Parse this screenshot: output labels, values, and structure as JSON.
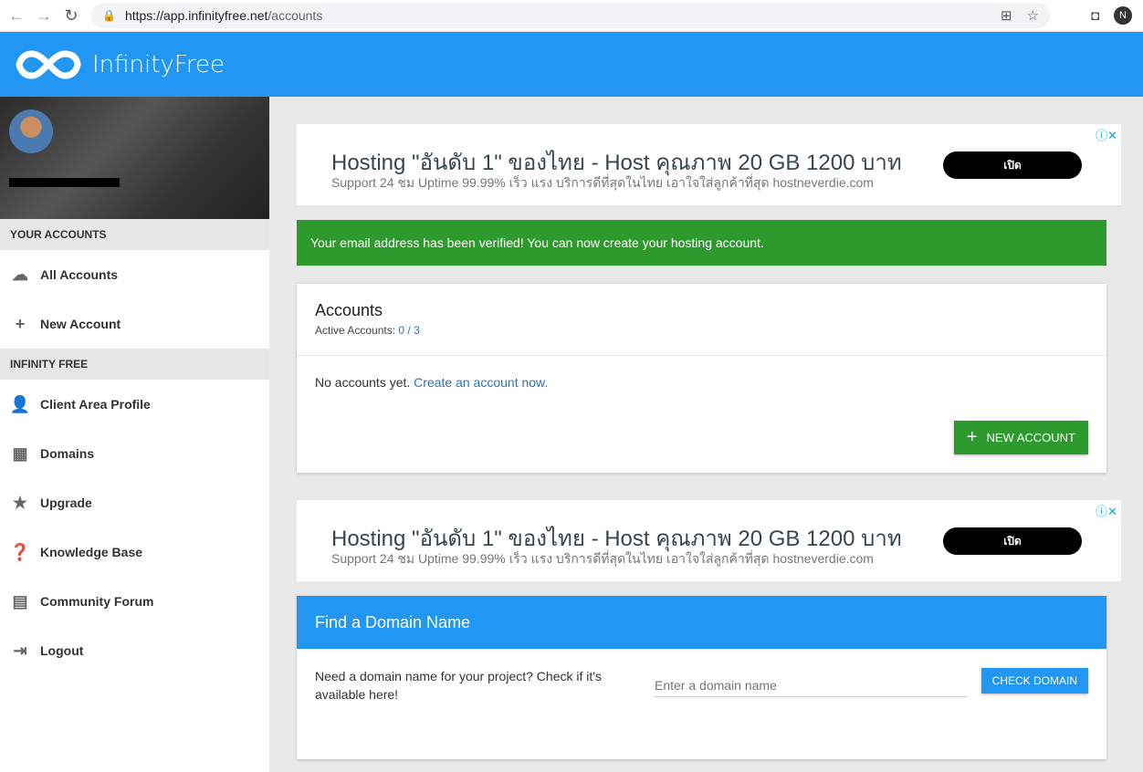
{
  "browser": {
    "url_host": "https://app.infinityfree.net",
    "url_path": "/accounts",
    "profile_initial": "N"
  },
  "header": {
    "brand": "InfinityFree"
  },
  "sidebar": {
    "section1": "YOUR ACCOUNTS",
    "items1": [
      {
        "label": "All Accounts",
        "icon": "cloud-icon"
      },
      {
        "label": "New Account",
        "icon": "plus-icon"
      }
    ],
    "section2": "INFINITY FREE",
    "items2": [
      {
        "label": "Client Area Profile",
        "icon": "person-icon"
      },
      {
        "label": "Domains",
        "icon": "building-icon"
      },
      {
        "label": "Upgrade",
        "icon": "star-icon"
      },
      {
        "label": "Knowledge Base",
        "icon": "help-icon"
      },
      {
        "label": "Community Forum",
        "icon": "forum-icon"
      },
      {
        "label": "Logout",
        "icon": "logout-icon"
      }
    ]
  },
  "ad": {
    "headline": "Hosting \"อันดับ 1\" ของไทย - Host คุณภาพ 20 GB 1200 บาท",
    "sub": "Support 24 ชม Uptime 99.99% เร็ว แรง บริการดีที่สุดในไทย เอาใจใส่ลูกค้าที่สุด hostneverdie.com",
    "button": "เปิด"
  },
  "alert": "Your email address has been verified! You can now create your hosting account.",
  "accounts": {
    "title": "Accounts",
    "active_label": "Active Accounts:",
    "active_value": "0 / 3",
    "empty_text": "No accounts yet.",
    "create_link": "Create an account now.",
    "new_button": "NEW ACCOUNT"
  },
  "domain": {
    "title": "Find a Domain Name",
    "text": "Need a domain name for your project? Check if it's available here!",
    "placeholder": "Enter a domain name",
    "button": "CHECK DOMAIN"
  }
}
